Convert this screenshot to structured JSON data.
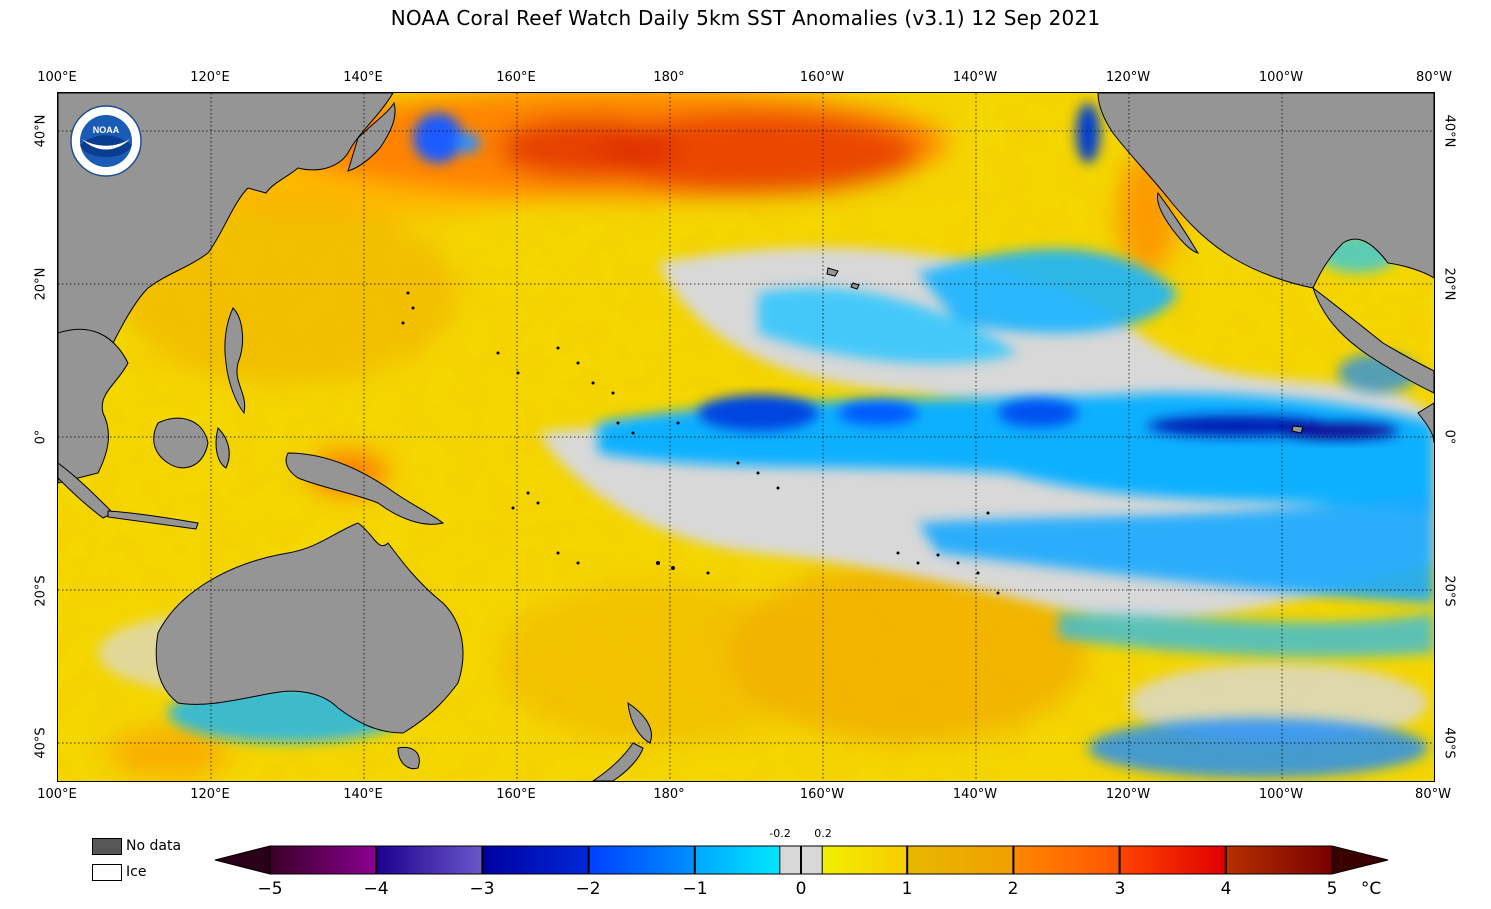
{
  "title": "NOAA Coral Reef Watch Daily 5km SST Anomalies  (v3.1)   12 Sep 2021",
  "map": {
    "lon_labels": [
      "100°E",
      "120°E",
      "140°E",
      "160°E",
      "180°",
      "160°W",
      "140°W",
      "120°W",
      "100°W",
      "80°W"
    ],
    "lat_labels": [
      "40°N",
      "20°N",
      "0°",
      "20°S",
      "40°S"
    ],
    "logo_text": "NOAA",
    "colors": {
      "land": "#959595",
      "neutral": "#d8d8d8",
      "grid": "#000000"
    }
  },
  "legend": {
    "no_data_label": "No data",
    "ice_label": "Ice",
    "no_data_color": "#575757",
    "ice_color": "#ffffff"
  },
  "colorbar": {
    "ticks": [
      "−5",
      "−4",
      "−3",
      "−2",
      "−1",
      "0",
      "1",
      "2",
      "3",
      "4",
      "5"
    ],
    "small_ticks": [
      "-0.2",
      "0.2"
    ],
    "unit": "°C",
    "segments": [
      {
        "range": "-5 to -4",
        "from": "#3a0028",
        "to": "#8b0090"
      },
      {
        "range": "-4 to -3",
        "from": "#1c0090",
        "to": "#6a58c8"
      },
      {
        "range": "-3 to -2",
        "from": "#0000a0",
        "to": "#0028d8"
      },
      {
        "range": "-2 to -1",
        "from": "#0040ff",
        "to": "#0090ff"
      },
      {
        "range": "-1 to -0.2",
        "from": "#00a6ff",
        "to": "#00e8ff"
      },
      {
        "range": "-0.2 to 0.2",
        "color": "#d8d8d8"
      },
      {
        "range": "0.2 to 1",
        "from": "#f0f000",
        "to": "#f8cc00"
      },
      {
        "range": "1 to 2",
        "from": "#e8b800",
        "to": "#f0a000"
      },
      {
        "range": "2 to 3",
        "from": "#ff8800",
        "to": "#ff5400"
      },
      {
        "range": "3 to 4",
        "from": "#ff4400",
        "to": "#e00000"
      },
      {
        "range": "4 to 5",
        "from": "#b83000",
        "to": "#780000"
      }
    ],
    "min_color": "#2a0018",
    "max_color": "#3a0000"
  }
}
